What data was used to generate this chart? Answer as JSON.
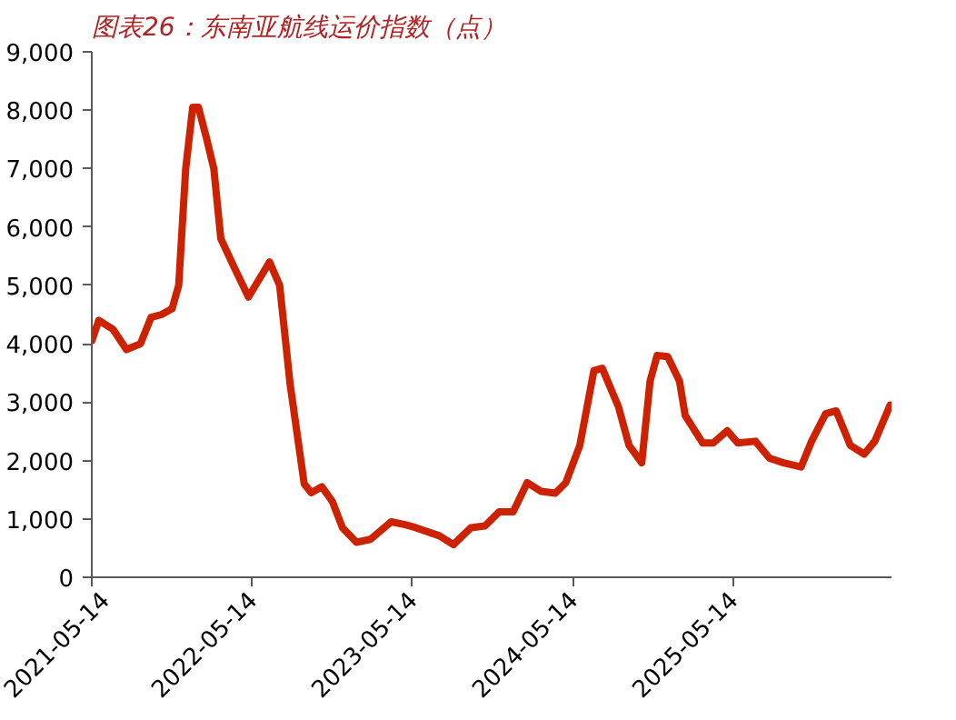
{
  "chart_data": {
    "type": "line",
    "title": "图表26：东南亚航线运价指数（点）",
    "x": [
      "2021-05-14",
      "2021-05-30",
      "2021-07-01",
      "2021-08-01",
      "2021-09-02",
      "2021-09-26",
      "2021-10-20",
      "2021-11-13",
      "2021-11-28",
      "2021-12-14",
      "2021-12-30",
      "2022-01-12",
      "2022-01-31",
      "2022-02-16",
      "2022-03-04",
      "2022-04-04",
      "2022-05-06",
      "2022-05-30",
      "2022-06-23",
      "2022-07-16",
      "2022-08-09",
      "2022-09-10",
      "2022-09-26",
      "2022-10-20",
      "2022-11-13",
      "2022-12-06",
      "2023-01-07",
      "2023-02-08",
      "2023-03-27",
      "2023-04-28",
      "2023-05-22",
      "2023-07-15",
      "2023-08-16",
      "2023-09-25",
      "2023-10-27",
      "2023-11-28",
      "2023-12-30",
      "2024-01-31",
      "2024-03-03",
      "2024-04-04",
      "2024-04-28",
      "2024-05-30",
      "2024-07-01",
      "2024-07-20",
      "2024-08-26",
      "2024-09-19",
      "2024-10-18",
      "2024-11-06",
      "2024-11-22",
      "2024-12-16",
      "2025-01-12",
      "2025-01-25",
      "2025-03-06",
      "2025-03-30",
      "2025-05-01",
      "2025-05-25",
      "2025-07-04",
      "2025-08-05",
      "2025-09-06",
      "2025-10-16",
      "2025-11-09",
      "2025-12-11",
      "2026-01-04",
      "2026-02-05",
      "2026-03-09",
      "2026-04-02",
      "2026-05-07"
    ],
    "series": [
      {
        "color": "#cc2200",
        "values": [
          4050,
          4400,
          4250,
          3900,
          4000,
          4450,
          4500,
          4600,
          5000,
          7000,
          8050,
          8050,
          7500,
          7000,
          5800,
          5300,
          4800,
          5100,
          5400,
          5000,
          3300,
          1600,
          1450,
          1550,
          1300,
          850,
          600,
          650,
          950,
          900,
          850,
          710,
          560,
          850,
          880,
          1120,
          1120,
          1620,
          1470,
          1440,
          1620,
          2260,
          3540,
          3580,
          2920,
          2260,
          1960,
          3360,
          3800,
          3780,
          3360,
          2770,
          2300,
          2300,
          2510,
          2300,
          2330,
          2040,
          1960,
          1890,
          2330,
          2800,
          2850,
          2260,
          2110,
          2330,
          2950
        ]
      }
    ],
    "xlim": [
      "2021-05-14",
      "2026-05-10"
    ],
    "xticks": [
      "2021-05-14",
      "2022-05-14",
      "2023-05-14",
      "2024-05-14",
      "2025-05-14"
    ],
    "ylim": [
      0,
      9000
    ],
    "yticks": [
      0,
      {
        "value": 1000,
        "label": "1,000"
      },
      {
        "value": 2000,
        "label": "2,000"
      },
      {
        "value": 3000,
        "label": "3,000"
      },
      {
        "value": 4000,
        "label": "4,000"
      },
      {
        "value": 5000,
        "label": "5,000"
      },
      {
        "value": 6000,
        "label": "6,000"
      },
      {
        "value": 7000,
        "label": "7,000"
      },
      {
        "value": 8000,
        "label": "8,000"
      },
      {
        "value": 9000,
        "label": "9,000"
      }
    ],
    "grid": false,
    "line_style": "solid"
  }
}
